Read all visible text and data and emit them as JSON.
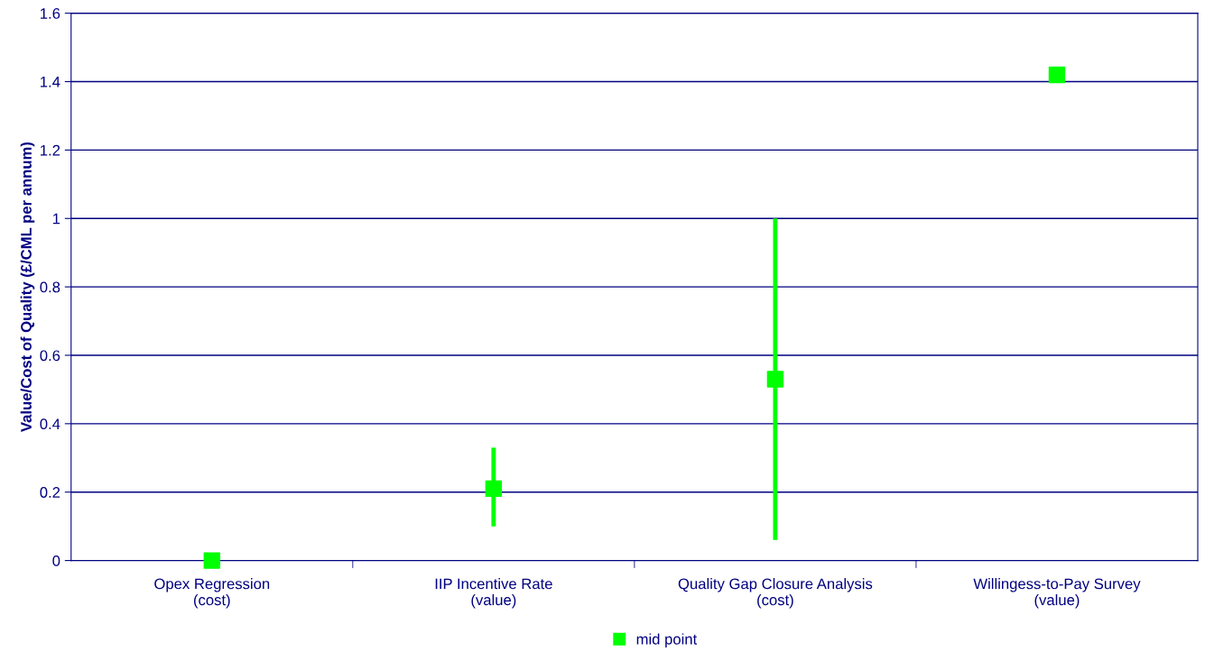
{
  "chart_data": {
    "type": "scatter",
    "ylabel": "Value/Cost of Quality (£/CML per annum)",
    "categories": [
      "Opex Regression\n(cost)",
      "IIP Incentive Rate\n(value)",
      "Quality Gap Closure Analysis\n(cost)",
      "Willingess-to-Pay Survey\n(value)"
    ],
    "series": [
      {
        "name": "mid point",
        "color": "#00ff00",
        "values": [
          0,
          0.21,
          0.53,
          1.42
        ],
        "errors": [
          null,
          [
            0.1,
            0.33
          ],
          [
            0.06,
            1.0
          ],
          null
        ]
      }
    ],
    "ylim": [
      0,
      1.6
    ],
    "yticks": [
      0,
      0.2,
      0.4,
      0.6,
      0.8,
      1,
      1.2,
      1.4,
      1.6
    ],
    "grid": "y",
    "legend": "bottom",
    "marker": "square"
  }
}
